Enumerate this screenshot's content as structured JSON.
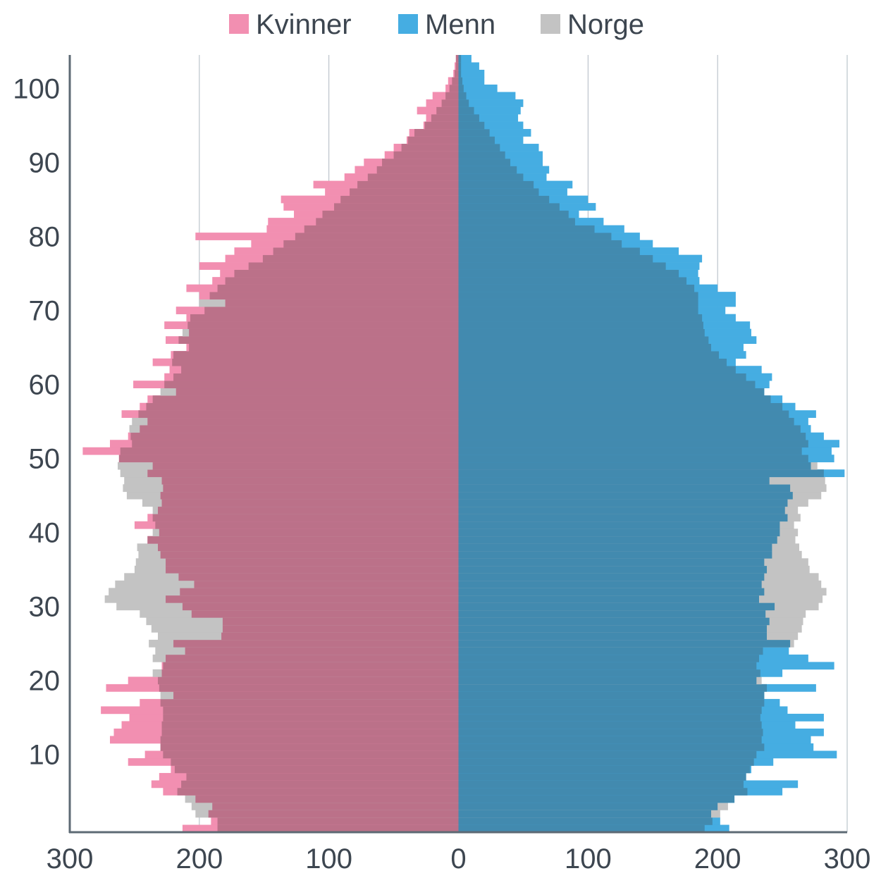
{
  "chart_data": {
    "type": "bar",
    "orientation": "horizontal",
    "subtype": "population-pyramid",
    "title": "",
    "xlabel": "",
    "ylabel": "",
    "legend": {
      "placement": "top-center",
      "items": [
        "Kvinner",
        "Menn",
        "Norge"
      ]
    },
    "colors": {
      "Kvinner": "#f28fb1",
      "Menn": "#45ade2",
      "Norge": "#c3c3c3",
      "overlap_left": "#bb7189",
      "overlap_right": "#428aaf",
      "axis": "#5d6a74",
      "grid": "#aeb8c1"
    },
    "x_ticks": [
      300,
      200,
      100,
      0,
      100,
      200,
      300
    ],
    "x_range": [
      -300,
      300
    ],
    "y_ticks": [
      10,
      20,
      30,
      40,
      50,
      60,
      70,
      80,
      90,
      100
    ],
    "y_range": [
      0,
      105
    ],
    "grid": "vertical",
    "ages": [
      0,
      1,
      2,
      3,
      4,
      5,
      6,
      7,
      8,
      9,
      10,
      11,
      12,
      13,
      14,
      15,
      16,
      17,
      18,
      19,
      20,
      21,
      22,
      23,
      24,
      25,
      26,
      27,
      28,
      29,
      30,
      31,
      32,
      33,
      34,
      35,
      36,
      37,
      38,
      39,
      40,
      41,
      42,
      43,
      44,
      45,
      46,
      47,
      48,
      49,
      50,
      51,
      52,
      53,
      54,
      55,
      56,
      57,
      58,
      59,
      60,
      61,
      62,
      63,
      64,
      65,
      66,
      67,
      68,
      69,
      70,
      71,
      72,
      73,
      74,
      75,
      76,
      77,
      78,
      79,
      80,
      81,
      82,
      83,
      84,
      85,
      86,
      87,
      88,
      89,
      90,
      91,
      92,
      93,
      94,
      95,
      96,
      97,
      98,
      99,
      100,
      101,
      102,
      103,
      104
    ],
    "series": [
      {
        "name": "Kvinner",
        "side": "left",
        "values": [
          213,
          191,
          193,
          190,
          203,
          228,
          237,
          231,
          222,
          255,
          242,
          230,
          269,
          266,
          260,
          254,
          276,
          246,
          220,
          272,
          255,
          229,
          229,
          226,
          211,
          220,
          183,
          182,
          182,
          206,
          213,
          226,
          215,
          204,
          216,
          226,
          226,
          230,
          232,
          240,
          231,
          250,
          240,
          232,
          229,
          230,
          228,
          229,
          240,
          236,
          262,
          290,
          269,
          255,
          246,
          240,
          260,
          246,
          240,
          218,
          251,
          227,
          223,
          236,
          222,
          210,
          226,
          208,
          227,
          210,
          218,
          180,
          200,
          210,
          190,
          184,
          200,
          180,
          173,
          160,
          203,
          148,
          147,
          127,
          135,
          137,
          103,
          112,
          88,
          80,
          73,
          57,
          50,
          40,
          38,
          27,
          25,
          32,
          25,
          20,
          10,
          8,
          4,
          3,
          2
        ]
      },
      {
        "name": "Menn",
        "side": "right",
        "values": [
          209,
          202,
          195,
          200,
          213,
          250,
          262,
          222,
          226,
          243,
          292,
          274,
          272,
          282,
          260,
          282,
          254,
          248,
          236,
          276,
          230,
          250,
          290,
          270,
          255,
          256,
          238,
          238,
          240,
          237,
          244,
          232,
          236,
          234,
          236,
          238,
          236,
          242,
          242,
          246,
          248,
          248,
          254,
          252,
          254,
          258,
          256,
          240,
          298,
          272,
          290,
          288,
          294,
          282,
          272,
          270,
          276,
          260,
          250,
          236,
          240,
          242,
          234,
          214,
          222,
          220,
          230,
          226,
          225,
          214,
          206,
          214,
          214,
          200,
          186,
          185,
          186,
          188,
          170,
          150,
          140,
          128,
          112,
          93,
          106,
          100,
          84,
          88,
          68,
          70,
          65,
          65,
          62,
          50,
          56,
          50,
          46,
          48,
          50,
          44,
          30,
          20,
          20,
          16,
          10
        ]
      },
      {
        "name": "Norge",
        "values_women": [
          186,
          186,
          203,
          206,
          211,
          217,
          214,
          210,
          219,
          222,
          228,
          230,
          230,
          229,
          229,
          228,
          228,
          230,
          230,
          231,
          232,
          236,
          228,
          236,
          234,
          239,
          232,
          237,
          241,
          246,
          264,
          273,
          270,
          265,
          258,
          250,
          249,
          247,
          248,
          240,
          236,
          234,
          236,
          236,
          244,
          256,
          259,
          258,
          261,
          263,
          262,
          261,
          252,
          253,
          254,
          252,
          247,
          241,
          236,
          230,
          227,
          220,
          214,
          221,
          220,
          208,
          216,
          213,
          209,
          207,
          196,
          200,
          192,
          186,
          180,
          173,
          162,
          151,
          143,
          135,
          126,
          119,
          110,
          105,
          96,
          91,
          84,
          78,
          70,
          63,
          59,
          50,
          44,
          39,
          34,
          26,
          21,
          17,
          13,
          10,
          7,
          5,
          3,
          2,
          2
        ]
      }
    ],
    "men_norge_values": [
      190,
      196,
      202,
      208,
      213,
      223,
      220,
      222,
      225,
      228,
      230,
      236,
      234,
      235,
      234,
      233,
      234,
      236,
      236,
      238,
      234,
      233,
      230,
      232,
      235,
      259,
      262,
      265,
      266,
      268,
      278,
      281,
      284,
      280,
      278,
      271,
      270,
      265,
      263,
      260,
      262,
      259,
      264,
      262,
      270,
      280,
      284,
      283,
      282,
      277,
      270,
      265,
      270,
      268,
      264,
      259,
      255,
      250,
      241,
      236,
      229,
      222,
      214,
      207,
      201,
      195,
      193,
      190,
      189,
      188,
      185,
      185,
      185,
      182,
      176,
      170,
      160,
      150,
      140,
      126,
      118,
      105,
      90,
      85,
      78,
      70,
      62,
      58,
      50,
      45,
      40,
      36,
      32,
      28,
      24,
      20,
      16,
      12,
      8,
      6,
      4,
      3,
      2,
      2,
      2
    ]
  }
}
